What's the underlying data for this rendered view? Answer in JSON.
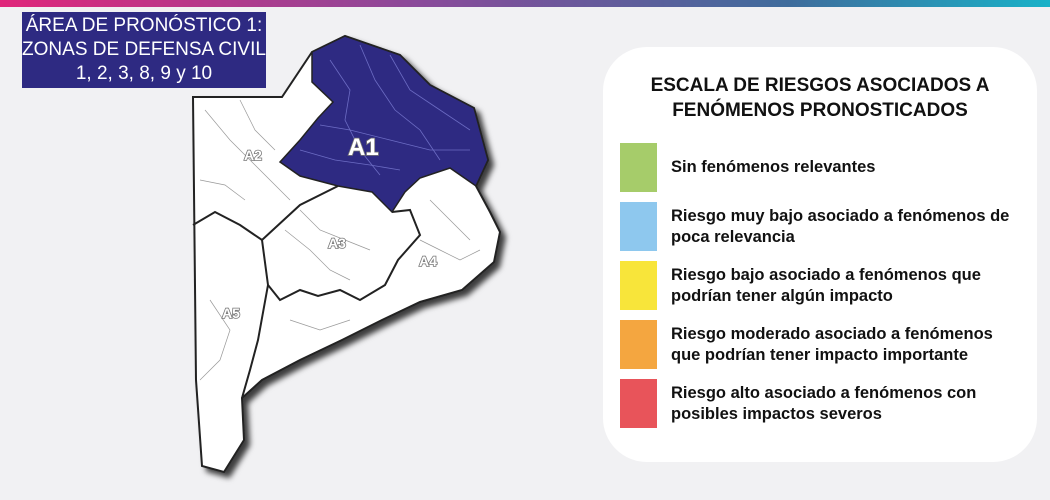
{
  "title": {
    "line1": "ÁREA DE PRONÓSTICO 1:",
    "line2": "ZONAS DE DEFENSA CIVIL",
    "line3": "1, 2, 3, 8, 9 y 10"
  },
  "map": {
    "highlight_color": "#2e2a82",
    "areas": [
      {
        "label": "A1",
        "highlighted": true
      },
      {
        "label": "A2",
        "highlighted": false
      },
      {
        "label": "A3",
        "highlighted": false
      },
      {
        "label": "A4",
        "highlighted": false
      },
      {
        "label": "A5",
        "highlighted": false
      }
    ]
  },
  "legend": {
    "title": "ESCALA DE RIESGOS ASOCIADOS A FENÓMENOS PRONOSTICADOS",
    "items": [
      {
        "color": "#a6cc6a",
        "label": "Sin fenómenos relevantes"
      },
      {
        "color": "#8ec8ee",
        "label": "Riesgo muy bajo asociado a fenómenos de poca relevancia"
      },
      {
        "color": "#f8e53a",
        "label": "Riesgo bajo asociado a fenómenos que podrían tener algún impacto"
      },
      {
        "color": "#f4a640",
        "label": "Riesgo moderado asociado a fenómenos que podrían tener impacto importante"
      },
      {
        "color": "#e8545a",
        "label": "Riesgo alto asociado a fenómenos con posibles impactos severos"
      }
    ]
  }
}
